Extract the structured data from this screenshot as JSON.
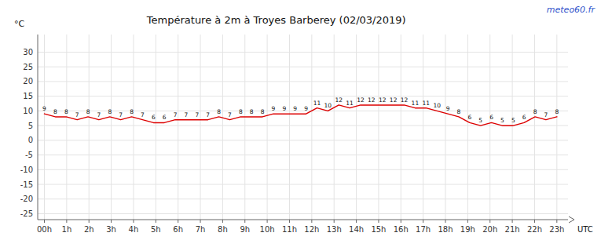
{
  "chart_data": {
    "type": "line",
    "title": "Température à 2m à Troyes Barberey (02/03/2019)",
    "ylabel": "°C",
    "annotations": [
      "meteo60.fr",
      "UTC"
    ],
    "x": [
      0,
      0.489362,
      0.978723,
      1.468085,
      1.957447,
      2.446809,
      2.93617,
      3.425532,
      3.914894,
      4.404255,
      4.893617,
      5.382979,
      5.87234,
      6.361702,
      6.851064,
      7.340426,
      7.829787,
      8.319149,
      8.808511,
      9.297872,
      9.787234,
      10.276596,
      10.765957,
      11.255319,
      11.744681,
      12.234043,
      12.723404,
      13.212766,
      13.702128,
      14.191489,
      14.680851,
      15.170213,
      15.659574,
      16.148936,
      16.638298,
      17.12766,
      17.617021,
      18.106383,
      18.595745,
      19.085106,
      19.574468,
      20.06383,
      20.553191,
      21.042553,
      21.531915,
      22.021277,
      22.510638,
      23
    ],
    "values": [
      9,
      8,
      8,
      7,
      8,
      7,
      8,
      7,
      8,
      7,
      6,
      6,
      7,
      7,
      7,
      7,
      8,
      7,
      8,
      8,
      8,
      9,
      9,
      9,
      9,
      11,
      10,
      12,
      11,
      12,
      12,
      12,
      12,
      12,
      11,
      11,
      10,
      9,
      8,
      6,
      5,
      6,
      5,
      5,
      6,
      8,
      7,
      8
    ],
    "color": "#dd0000",
    "xlim": [
      -0.3,
      23.5
    ],
    "xticks": [
      {
        "value": 0,
        "label": "00h"
      },
      {
        "value": 1,
        "label": "1h"
      },
      {
        "value": 2,
        "label": "2h"
      },
      {
        "value": 3,
        "label": "3h"
      },
      {
        "value": 4,
        "label": "4h"
      },
      {
        "value": 5,
        "label": "5h"
      },
      {
        "value": 6,
        "label": "6h"
      },
      {
        "value": 7,
        "label": "7h"
      },
      {
        "value": 8,
        "label": "8h"
      },
      {
        "value": 9,
        "label": "9h"
      },
      {
        "value": 10,
        "label": "10h"
      },
      {
        "value": 11,
        "label": "11h"
      },
      {
        "value": 12,
        "label": "12h"
      },
      {
        "value": 13,
        "label": "13h"
      },
      {
        "value": 14,
        "label": "14h"
      },
      {
        "value": 15,
        "label": "15h"
      },
      {
        "value": 16,
        "label": "16h"
      },
      {
        "value": 17,
        "label": "17h"
      },
      {
        "value": 18,
        "label": "18h"
      },
      {
        "value": 19,
        "label": "19h"
      },
      {
        "value": 20,
        "label": "20h"
      },
      {
        "value": 21,
        "label": "21h"
      },
      {
        "value": 22,
        "label": "22h"
      },
      {
        "value": 23,
        "label": "23h"
      }
    ],
    "ylim": [
      -27,
      36
    ],
    "yticks": [
      -25,
      -20,
      -15,
      -10,
      -5,
      0,
      5,
      10,
      15,
      20,
      25,
      30
    ],
    "grid": true,
    "data_labels": true
  }
}
